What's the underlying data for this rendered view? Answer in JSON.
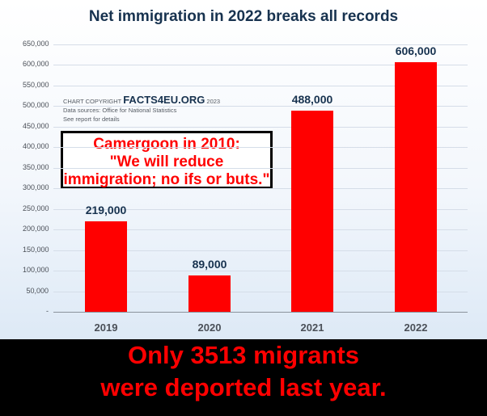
{
  "chart_data": {
    "type": "bar",
    "title": "Net immigration in 2022 breaks all records",
    "categories": [
      "2019",
      "2020",
      "2021",
      "2022"
    ],
    "values": [
      219000,
      89000,
      488000,
      606000
    ],
    "value_labels": [
      "219,000",
      "89,000",
      "488,000",
      "606,000"
    ],
    "ylim": [
      0,
      650000
    ],
    "yticks": [
      "-",
      "50,000",
      "100,000",
      "150,000",
      "200,000",
      "250,000",
      "300,000",
      "350,000",
      "400,000",
      "450,000",
      "500,000",
      "550,000",
      "600,000",
      "650,000"
    ],
    "ytick_values": [
      0,
      50000,
      100000,
      150000,
      200000,
      250000,
      300000,
      350000,
      400000,
      450000,
      500000,
      550000,
      600000,
      650000
    ],
    "grid": true,
    "bar_color": "#ff0000"
  },
  "copyright": {
    "prefix": "CHART COPYRIGHT",
    "brand": "FACTS4EU.ORG",
    "year": "2023",
    "source": "Data sources: Office for National Statistics",
    "note": "See report for details"
  },
  "quote": {
    "line1": "Camergoon in 2010:",
    "line2": "\"We will reduce",
    "line3": "immigration; no ifs or buts.\""
  },
  "caption": {
    "line1": "Only 3513 migrants",
    "line2": "were deported last year."
  },
  "colors": {
    "title": "#17324f",
    "accent_red": "#ff0000",
    "band": "#000000"
  }
}
